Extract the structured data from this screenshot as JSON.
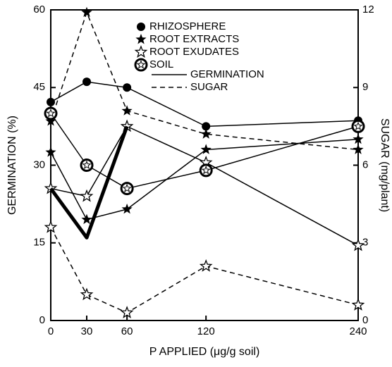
{
  "chart_data": {
    "type": "line",
    "x_label": "P APPLIED (μg/g soil)",
    "y_label": "GERMINATION (%)",
    "y2_label": "SUGAR (mg/plant)",
    "categories": [
      "0",
      "30",
      "60",
      "120",
      "240"
    ],
    "ylim": [
      0,
      60
    ],
    "yticks": [
      0,
      15,
      30,
      45,
      60
    ],
    "y2lim": [
      0,
      12
    ],
    "y2ticks": [
      0,
      3,
      6,
      9,
      12
    ],
    "legend_markers": [
      {
        "name": "RHIZOSPHERE",
        "marker": "circle"
      },
      {
        "name": "ROOT EXTRACTS",
        "marker": "star"
      },
      {
        "name": "ROOT EXUDATES",
        "marker": "open-star"
      },
      {
        "name": "SOIL",
        "marker": "soil"
      }
    ],
    "legend_lines": [
      {
        "name": "GERMINATION",
        "style": "solid"
      },
      {
        "name": "SUGAR",
        "style": "dashed"
      }
    ],
    "series": [
      {
        "marker": "circle",
        "style": "solid",
        "axis": "y",
        "color": "#000",
        "values": [
          42.2,
          46.1,
          45,
          37.5,
          38.6
        ]
      },
      {
        "marker": "star",
        "style": "solid",
        "axis": "y",
        "color": "#000",
        "values": [
          32.5,
          19.5,
          21.5,
          33,
          35
        ]
      },
      {
        "marker": "star",
        "style": "dashed",
        "axis": "y2",
        "color": "#000",
        "values": [
          7.7,
          11.9,
          8.1,
          7.2,
          6.6
        ]
      },
      {
        "marker": "open-star",
        "style": "solid",
        "axis": "y",
        "color": "#000",
        "values": [
          25.5,
          24,
          37.5,
          30.5,
          14.5
        ]
      },
      {
        "marker": "open-star",
        "style": "dashed",
        "axis": "y2",
        "color": "#000",
        "values": [
          3.6,
          1.0,
          0.3,
          2.1,
          0.6
        ]
      },
      {
        "marker": "soil",
        "style": "solid",
        "axis": "y",
        "color": "#000",
        "values": [
          40,
          30,
          25.5,
          29,
          37.5
        ]
      },
      {
        "marker": "none",
        "style": "thick",
        "axis": "y",
        "color": "#000",
        "values": [
          25.5,
          16,
          37.5,
          null,
          null
        ]
      }
    ]
  }
}
